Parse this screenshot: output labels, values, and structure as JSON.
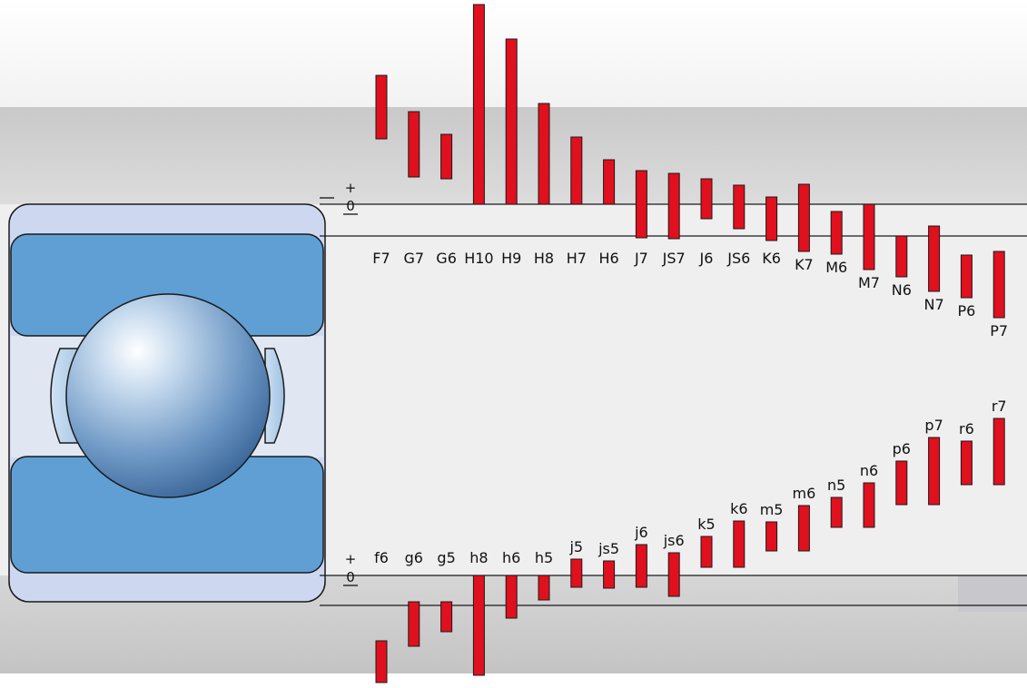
{
  "diagram": {
    "zero_symbol": "0",
    "plus_symbol": "+",
    "minus_symbol": "−",
    "colors": {
      "tolerance_bar": "#e0101e",
      "outer_ring": "#5f9fd4",
      "ball": "#7aa8d4"
    },
    "housing_zones": [
      {
        "label": "F7",
        "upper": 142,
        "lower": 72
      },
      {
        "label": "G7",
        "upper": 102,
        "lower": 30
      },
      {
        "label": "G6",
        "upper": 77,
        "lower": 28
      },
      {
        "label": "H10",
        "upper": 220,
        "lower": 0
      },
      {
        "label": "H9",
        "upper": 182,
        "lower": 0
      },
      {
        "label": "H8",
        "upper": 111,
        "lower": 0
      },
      {
        "label": "H7",
        "upper": 74,
        "lower": 0
      },
      {
        "label": "H6",
        "upper": 49,
        "lower": 0
      },
      {
        "label": "J7",
        "upper": 37,
        "lower": -37
      },
      {
        "label": "JS7",
        "upper": 34,
        "lower": -38
      },
      {
        "label": "J6",
        "upper": 28,
        "lower": -16
      },
      {
        "label": "JS6",
        "upper": 21,
        "lower": -27
      },
      {
        "label": "K6",
        "upper": 8,
        "lower": -40
      },
      {
        "label": "K7",
        "upper": 22,
        "lower": -52
      },
      {
        "label": "M6",
        "upper": -8,
        "lower": -55
      },
      {
        "label": "M7",
        "upper": 0,
        "lower": -72
      },
      {
        "label": "N6",
        "upper": -35,
        "lower": -80
      },
      {
        "label": "N7",
        "upper": -24,
        "lower": -96
      },
      {
        "label": "P6",
        "upper": -56,
        "lower": -103
      },
      {
        "label": "P7",
        "upper": -52,
        "lower": -125
      }
    ],
    "shaft_zones": [
      {
        "label": "f6",
        "upper": -72,
        "lower": -118
      },
      {
        "label": "g6",
        "upper": -29,
        "lower": -78
      },
      {
        "label": "g5",
        "upper": -29,
        "lower": -62
      },
      {
        "label": "h8",
        "upper": 0,
        "lower": -110
      },
      {
        "label": "h6",
        "upper": 0,
        "lower": -47
      },
      {
        "label": "h5",
        "upper": 0,
        "lower": -27
      },
      {
        "label": "j5",
        "upper": 18,
        "lower": -13
      },
      {
        "label": "js5",
        "upper": 16,
        "lower": -14
      },
      {
        "label": "j6",
        "upper": 34,
        "lower": -13
      },
      {
        "label": "js6",
        "upper": 25,
        "lower": -23
      },
      {
        "label": "k5",
        "upper": 43,
        "lower": 9
      },
      {
        "label": "k6",
        "upper": 60,
        "lower": 9
      },
      {
        "label": "m5",
        "upper": 59,
        "lower": 27
      },
      {
        "label": "m6",
        "upper": 77,
        "lower": 27
      },
      {
        "label": "n5",
        "upper": 86,
        "lower": 53
      },
      {
        "label": "n6",
        "upper": 102,
        "lower": 53
      },
      {
        "label": "p6",
        "upper": 126,
        "lower": 78
      },
      {
        "label": "p7",
        "upper": 152,
        "lower": 78
      },
      {
        "label": "r6",
        "upper": 148,
        "lower": 100
      },
      {
        "label": "r7",
        "upper": 173,
        "lower": 100
      }
    ]
  }
}
